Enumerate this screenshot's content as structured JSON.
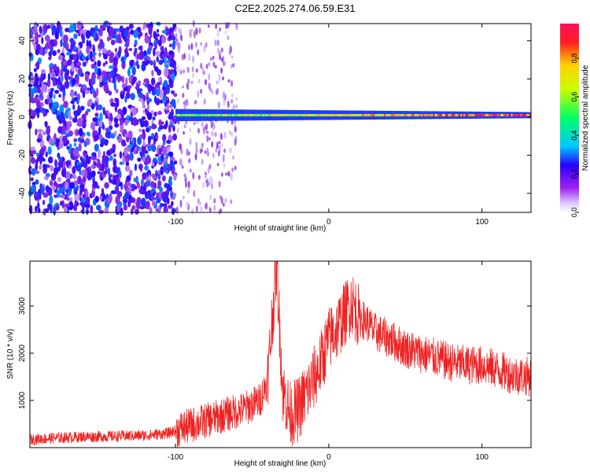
{
  "title": "C2E2.2025.274.06.59.E31",
  "colors": {
    "snr_line": "#ee2222",
    "scatter_bg": "#7a1ff0",
    "colormap": [
      "#ffffff",
      "#dcc8ff",
      "#8a2be2",
      "#2a00ff",
      "#00c8ff",
      "#00ff66",
      "#c8ff00",
      "#ffd000",
      "#ff2020",
      "#ff1060"
    ]
  },
  "chart_data": [
    {
      "type": "heatmap",
      "xlabel": "Height of straight line (km)",
      "ylabel": "Frequency (Hz)",
      "xlim": [
        -195,
        132
      ],
      "ylim": [
        -50,
        49
      ],
      "xticks": [
        -100,
        0,
        100
      ],
      "yticks": [
        -40,
        -20,
        0,
        20,
        40
      ],
      "colorbar": {
        "label": "Normalized spectral amplitude",
        "range": [
          0,
          0.98
        ],
        "ticks": [
          "0.0",
          "0.2",
          "0.4",
          "0.6",
          "0.8"
        ]
      },
      "features": [
        {
          "kind": "noise",
          "x_range": [
            -195,
            -100
          ],
          "y_range": [
            -50,
            49
          ],
          "level": 0.25
        },
        {
          "kind": "faint-noise",
          "x_range": [
            -100,
            -60
          ],
          "y_range": [
            -50,
            49
          ],
          "level": 0.08
        },
        {
          "kind": "band",
          "x_range": [
            -100,
            132
          ],
          "center_hz": 1,
          "half_width_hz": 2,
          "level": 0.55
        }
      ]
    },
    {
      "type": "line",
      "xlabel": "Height of straight line (km)",
      "ylabel": "SNR (10 * v/v)",
      "xlim": [
        -195,
        132
      ],
      "ylim": [
        0,
        3950
      ],
      "xticks": [
        -100,
        0,
        100
      ],
      "yticks": [
        1000,
        2000,
        3000
      ],
      "series": [
        {
          "x": [
            -195,
            -180,
            -160,
            -140,
            -120,
            -105,
            -95,
            -85,
            -75,
            -65,
            -55,
            -45,
            -40,
            -34,
            -30,
            -25,
            -20,
            -12,
            -5,
            0,
            5,
            10,
            15,
            20,
            25,
            30,
            40,
            50,
            60,
            70,
            80,
            90,
            100,
            110,
            120,
            132
          ],
          "y": [
            170,
            200,
            230,
            240,
            260,
            300,
            420,
            520,
            620,
            720,
            820,
            1000,
            1400,
            3900,
            1200,
            700,
            800,
            1300,
            1800,
            2300,
            2500,
            2800,
            3100,
            2750,
            2650,
            2450,
            2300,
            2100,
            2000,
            1900,
            1800,
            1750,
            1750,
            1650,
            1550,
            1500
          ]
        }
      ]
    }
  ]
}
